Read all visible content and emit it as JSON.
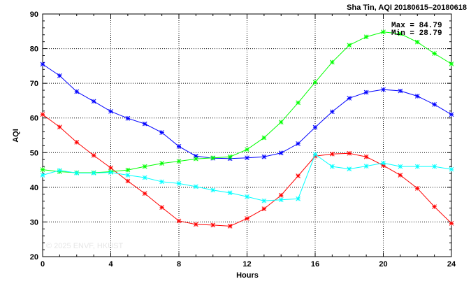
{
  "chart_data": {
    "type": "line",
    "title": "Sha Tin, AQI 20180615–20180618",
    "xlabel": "Hours",
    "ylabel": "AQI",
    "xlim": [
      0,
      24
    ],
    "ylim": [
      20,
      90
    ],
    "xticks": [
      0,
      4,
      8,
      12,
      16,
      20,
      24
    ],
    "yticks": [
      20,
      30,
      40,
      50,
      60,
      70,
      80,
      90
    ],
    "grid": true,
    "annotations": {
      "max": "Max = 84.79",
      "min": "Min = 28.79"
    },
    "watermark": "© 2025  ENVF, HKUST",
    "x": [
      0,
      1,
      2,
      3,
      4,
      5,
      6,
      7,
      8,
      9,
      10,
      11,
      12,
      13,
      14,
      15,
      16,
      17,
      18,
      19,
      20,
      21,
      22,
      23,
      24
    ],
    "series": [
      {
        "color": "#0000ff",
        "values": [
          75.5,
          72.2,
          67.6,
          64.8,
          61.9,
          59.9,
          58.3,
          55.8,
          51.8,
          49.0,
          48.4,
          48.3,
          48.5,
          48.8,
          49.9,
          52.6,
          57.3,
          61.8,
          65.7,
          67.4,
          68.2,
          67.8,
          66.3,
          63.9,
          61.0
        ]
      },
      {
        "color": "#ff0000",
        "values": [
          61.0,
          57.4,
          53.0,
          49.2,
          45.6,
          41.8,
          38.2,
          34.2,
          30.3,
          29.3,
          29.1,
          28.8,
          31.0,
          33.8,
          37.7,
          43.3,
          49.0,
          49.6,
          49.8,
          48.8,
          46.3,
          43.5,
          39.7,
          34.4,
          29.6
        ]
      },
      {
        "color": "#00ff00",
        "values": [
          45.1,
          44.5,
          44.2,
          44.2,
          44.5,
          45.0,
          46.0,
          46.9,
          47.5,
          48.2,
          48.5,
          48.8,
          50.9,
          54.3,
          58.8,
          64.4,
          70.3,
          76.1,
          81.0,
          83.4,
          84.8,
          84.3,
          81.9,
          78.6,
          75.6
        ]
      },
      {
        "color": "#00ffff",
        "values": [
          43.5,
          44.9,
          44.1,
          44.1,
          44.3,
          43.5,
          42.8,
          41.6,
          41.1,
          40.2,
          39.2,
          38.4,
          37.3,
          36.1,
          36.4,
          36.7,
          49.5,
          46.0,
          45.3,
          46.1,
          47.0,
          46.0,
          46.0,
          46.0,
          45.2
        ]
      }
    ]
  }
}
